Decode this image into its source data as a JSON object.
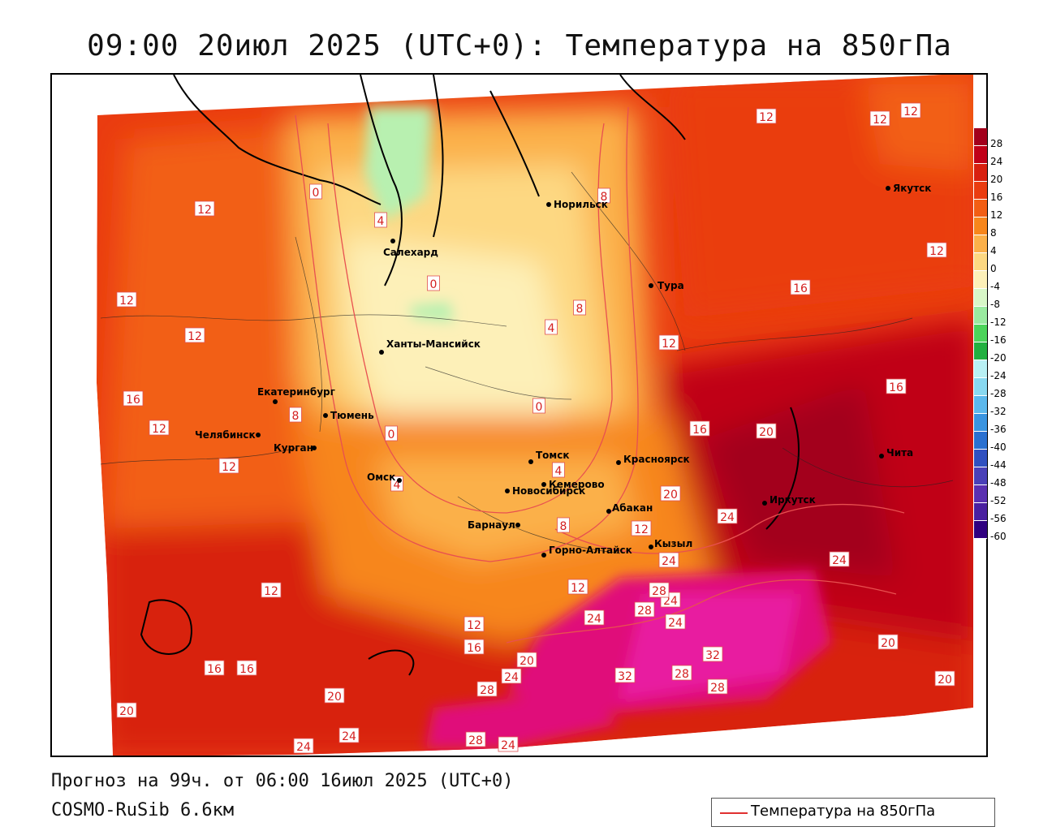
{
  "title": "09:00 20июл 2025 (UTC+0): Температура на 850гПа",
  "footer": {
    "forecast": "Прогноз на 99ч. от 06:00 16июл 2025 (UTC+0)",
    "model": "COSMO-RuSib 6.6км"
  },
  "legend": {
    "label": "Температура на 850гПа",
    "line_color": "#e03030"
  },
  "color_scale": {
    "ticks": [
      "28",
      "24",
      "20",
      "16",
      "12",
      "8",
      "4",
      "0",
      "-4",
      "-8",
      "-12",
      "-16",
      "-20",
      "-24",
      "-28",
      "-32",
      "-36",
      "-40",
      "-44",
      "-48",
      "-52",
      "-56",
      "-60"
    ],
    "colors": [
      "#a3001c",
      "#c00018",
      "#d8200f",
      "#ea3c10",
      "#f25e14",
      "#f7861c",
      "#fbb04a",
      "#fdd882",
      "#fdf0b8",
      "#d8f7c8",
      "#9aeaa0",
      "#4cd45a",
      "#22b040",
      "#b8f0f4",
      "#88d8f0",
      "#5cb8ec",
      "#3a94e0",
      "#2a70d0",
      "#3050c0",
      "#4a40b8",
      "#5a30b0",
      "#4a20a0",
      "#300080"
    ]
  },
  "cities": [
    {
      "name": "Норильск"
    },
    {
      "name": "Якутск"
    },
    {
      "name": "Салехард"
    },
    {
      "name": "Тура"
    },
    {
      "name": "Ханты-Мансийск"
    },
    {
      "name": "Екатеринбург"
    },
    {
      "name": "Тюмень"
    },
    {
      "name": "Челябинск"
    },
    {
      "name": "Курган"
    },
    {
      "name": "Омск"
    },
    {
      "name": "Новосибирск"
    },
    {
      "name": "Томск"
    },
    {
      "name": "Кемерово"
    },
    {
      "name": "Красноярск"
    },
    {
      "name": "Абакан"
    },
    {
      "name": "Барнаул"
    },
    {
      "name": "Горно-Алтайск"
    },
    {
      "name": "Кызыл"
    },
    {
      "name": "Иркутск"
    },
    {
      "name": "Чита"
    }
  ],
  "contour_labels": [
    "12",
    "12",
    "12",
    "12",
    "12",
    "8",
    "0",
    "4",
    "0",
    "12",
    "12",
    "8",
    "4",
    "12",
    "16",
    "16",
    "16",
    "12",
    "8",
    "0",
    "0",
    "4",
    "16",
    "20",
    "12",
    "20",
    "4",
    "8",
    "12",
    "24",
    "24",
    "12",
    "12",
    "24",
    "28",
    "28",
    "24",
    "24",
    "12",
    "16",
    "20",
    "24",
    "32",
    "28",
    "32",
    "28",
    "24",
    "20",
    "20",
    "16",
    "20",
    "28",
    "28",
    "24",
    "24",
    "24",
    "20",
    "16"
  ]
}
